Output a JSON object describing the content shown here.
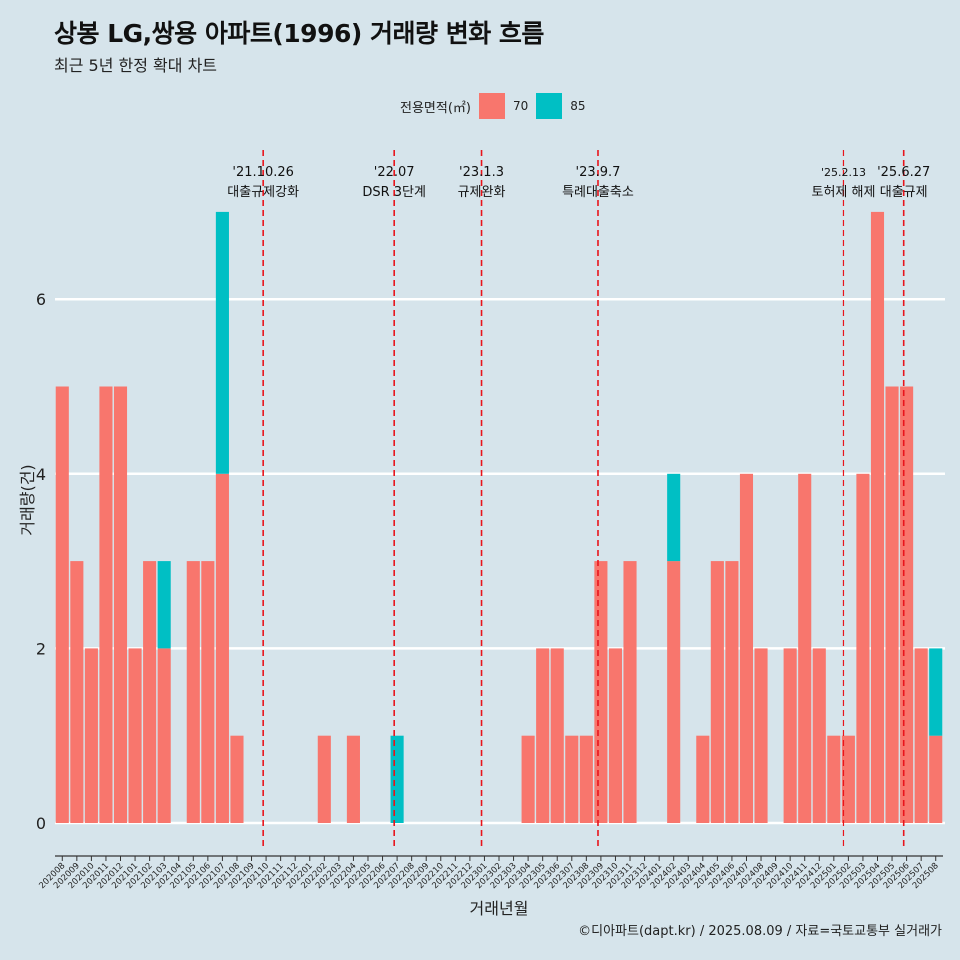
{
  "title": "상봉 LG,쌍용 아파트(1996) 거래량 변화 흐름",
  "subtitle": "최근 5년 한정 확대 차트",
  "caption": "©디아파트(dapt.kr) / 2025.08.09 / 자료=국토교통부 실거래가",
  "legend": {
    "title": "전용면적(㎡)",
    "items": [
      {
        "label": "70",
        "color": "#f8766d"
      },
      {
        "label": "85",
        "color": "#00bfc4"
      }
    ]
  },
  "chart_data": {
    "type": "bar",
    "stacked": true,
    "xlabel": "거래년월",
    "ylabel": "거래량(건)",
    "ylim": [
      0,
      7
    ],
    "yticks": [
      0,
      2,
      4,
      6
    ],
    "categories": [
      "202008",
      "202009",
      "202010",
      "202011",
      "202012",
      "202101",
      "202102",
      "202103",
      "202104",
      "202105",
      "202106",
      "202107",
      "202108",
      "202109",
      "202110",
      "202111",
      "202112",
      "202201",
      "202202",
      "202203",
      "202204",
      "202205",
      "202206",
      "202207",
      "202208",
      "202209",
      "202210",
      "202211",
      "202212",
      "202301",
      "202302",
      "202303",
      "202304",
      "202305",
      "202306",
      "202307",
      "202308",
      "202309",
      "202310",
      "202311",
      "202312",
      "202401",
      "202402",
      "202403",
      "202404",
      "202405",
      "202406",
      "202407",
      "202408",
      "202409",
      "202410",
      "202411",
      "202412",
      "202501",
      "202502",
      "202503",
      "202504",
      "202505",
      "202506",
      "202507",
      "202508"
    ],
    "series": [
      {
        "name": "70",
        "color": "#f8766d",
        "values": [
          5,
          3,
          2,
          5,
          5,
          2,
          3,
          2,
          0,
          3,
          3,
          4,
          1,
          0,
          0,
          0,
          0,
          0,
          1,
          0,
          1,
          0,
          0,
          0,
          0,
          0,
          0,
          0,
          0,
          0,
          0,
          0,
          1,
          2,
          2,
          1,
          1,
          3,
          2,
          3,
          0,
          0,
          3,
          0,
          1,
          3,
          3,
          4,
          2,
          0,
          2,
          4,
          2,
          1,
          1,
          4,
          7,
          5,
          5,
          2,
          1
        ]
      },
      {
        "name": "85",
        "color": "#00bfc4",
        "values": [
          0,
          0,
          0,
          0,
          0,
          0,
          0,
          1,
          0,
          0,
          0,
          3,
          0,
          0,
          0,
          0,
          0,
          0,
          0,
          0,
          0,
          0,
          0,
          1,
          0,
          0,
          0,
          0,
          0,
          0,
          0,
          0,
          0,
          0,
          0,
          0,
          0,
          0,
          0,
          0,
          0,
          0,
          1,
          0,
          0,
          0,
          0,
          0,
          0,
          0,
          0,
          0,
          0,
          0,
          0,
          0,
          0,
          0,
          0,
          0,
          1
        ]
      }
    ],
    "annotations": [
      {
        "date": "'21.10.26",
        "label": "대출규제강화",
        "x_index": 14.3
      },
      {
        "date": "'22.07",
        "label": "DSR 3단계",
        "x_index": 23.3
      },
      {
        "date": "'23.1.3",
        "label": "규제완화",
        "x_index": 29.3
      },
      {
        "date": "'23.9.7",
        "label": "특례대출축소",
        "x_index": 37.3
      },
      {
        "date": "'25.2.13",
        "label": "토허제 해제",
        "x_index": 54.3
      },
      {
        "date": "'25.6.27",
        "label": "대출규제",
        "x_index": 58.3
      }
    ]
  }
}
